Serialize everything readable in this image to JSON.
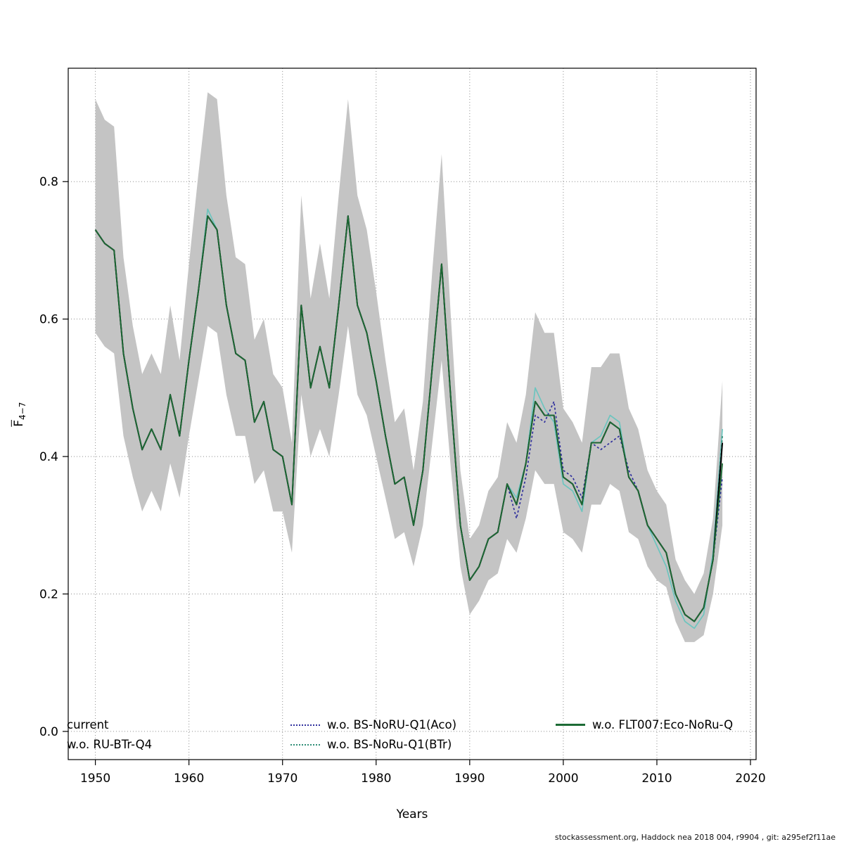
{
  "page": {
    "background": "#ffffff"
  },
  "footer": {
    "text": "stockassessment.org, Haddock  nea  2018  004, r9904 , git: a295ef2f11ae"
  },
  "chart_data": {
    "type": "line",
    "title": "",
    "xlabel": "Years",
    "ylabel": {
      "main": "F",
      "sub": "4−7"
    },
    "xlim": [
      1947.1,
      2020.6
    ],
    "ylim": [
      -0.041,
      0.965
    ],
    "xticks": [
      1950,
      1960,
      1970,
      1980,
      1990,
      2000,
      2010,
      2020
    ],
    "yticks": [
      0.0,
      0.2,
      0.4,
      0.6,
      0.8
    ],
    "grid": true,
    "grid_color": "#8f8f8f",
    "x": [
      1950,
      1951,
      1952,
      1953,
      1954,
      1955,
      1956,
      1957,
      1958,
      1959,
      1960,
      1961,
      1962,
      1963,
      1964,
      1965,
      1966,
      1967,
      1968,
      1969,
      1970,
      1971,
      1972,
      1973,
      1974,
      1975,
      1976,
      1977,
      1978,
      1979,
      1980,
      1981,
      1982,
      1983,
      1984,
      1985,
      1986,
      1987,
      1988,
      1989,
      1990,
      1991,
      1992,
      1993,
      1994,
      1995,
      1996,
      1997,
      1998,
      1999,
      2000,
      2001,
      2002,
      2003,
      2004,
      2005,
      2006,
      2007,
      2008,
      2009,
      2010,
      2011,
      2012,
      2013,
      2014,
      2015,
      2016,
      2017
    ],
    "band": {
      "color": "#c4c4c4",
      "lower": [
        0.58,
        0.56,
        0.55,
        0.43,
        0.37,
        0.32,
        0.35,
        0.32,
        0.39,
        0.34,
        0.43,
        0.51,
        0.59,
        0.58,
        0.49,
        0.43,
        0.43,
        0.36,
        0.38,
        0.32,
        0.32,
        0.26,
        0.49,
        0.4,
        0.44,
        0.4,
        0.49,
        0.59,
        0.49,
        0.46,
        0.4,
        0.34,
        0.28,
        0.29,
        0.24,
        0.3,
        0.42,
        0.54,
        0.38,
        0.24,
        0.17,
        0.19,
        0.22,
        0.23,
        0.28,
        0.26,
        0.31,
        0.38,
        0.36,
        0.36,
        0.29,
        0.28,
        0.26,
        0.33,
        0.33,
        0.36,
        0.35,
        0.29,
        0.28,
        0.24,
        0.22,
        0.21,
        0.16,
        0.13,
        0.13,
        0.14,
        0.2,
        0.3
      ],
      "upper": [
        0.92,
        0.89,
        0.88,
        0.69,
        0.59,
        0.52,
        0.55,
        0.52,
        0.62,
        0.54,
        0.68,
        0.81,
        0.93,
        0.92,
        0.78,
        0.69,
        0.68,
        0.57,
        0.6,
        0.52,
        0.5,
        0.42,
        0.78,
        0.63,
        0.71,
        0.63,
        0.78,
        0.92,
        0.78,
        0.73,
        0.64,
        0.54,
        0.45,
        0.47,
        0.38,
        0.48,
        0.67,
        0.84,
        0.6,
        0.38,
        0.28,
        0.3,
        0.35,
        0.37,
        0.45,
        0.42,
        0.49,
        0.61,
        0.58,
        0.58,
        0.47,
        0.45,
        0.42,
        0.53,
        0.53,
        0.55,
        0.55,
        0.47,
        0.44,
        0.38,
        0.35,
        0.33,
        0.25,
        0.22,
        0.2,
        0.23,
        0.31,
        0.51
      ]
    },
    "series": [
      {
        "name": "current",
        "legend_label": "current",
        "color": "#000000",
        "dash": "",
        "width": 2,
        "values": [
          0.73,
          0.71,
          0.7,
          0.55,
          0.47,
          0.41,
          0.44,
          0.41,
          0.49,
          0.43,
          0.54,
          0.64,
          0.75,
          0.73,
          0.62,
          0.55,
          0.54,
          0.45,
          0.48,
          0.41,
          0.4,
          0.33,
          0.62,
          0.5,
          0.56,
          0.5,
          0.62,
          0.75,
          0.62,
          0.58,
          0.51,
          0.43,
          0.36,
          0.37,
          0.3,
          0.38,
          0.53,
          0.68,
          0.48,
          0.3,
          0.22,
          0.24,
          0.28,
          0.29,
          0.36,
          0.33,
          0.39,
          0.48,
          0.46,
          0.46,
          0.37,
          0.36,
          0.33,
          0.42,
          0.42,
          0.45,
          0.44,
          0.37,
          0.35,
          0.3,
          0.28,
          0.26,
          0.2,
          0.17,
          0.16,
          0.18,
          0.25,
          0.42
        ]
      },
      {
        "name": "wo-RU-BTr-Q4",
        "legend_label": "w.o. RU-BTr-Q4",
        "color": "#6cc5bf",
        "dash": "",
        "width": 1.7,
        "values": [
          0.73,
          0.71,
          0.7,
          0.55,
          0.47,
          0.41,
          0.44,
          0.41,
          0.49,
          0.43,
          0.54,
          0.64,
          0.76,
          0.73,
          0.62,
          0.55,
          0.54,
          0.45,
          0.48,
          0.41,
          0.4,
          0.33,
          0.62,
          0.5,
          0.56,
          0.5,
          0.62,
          0.75,
          0.62,
          0.58,
          0.51,
          0.43,
          0.36,
          0.37,
          0.3,
          0.38,
          0.53,
          0.68,
          0.48,
          0.3,
          0.22,
          0.24,
          0.28,
          0.29,
          0.36,
          0.34,
          0.39,
          0.5,
          0.47,
          0.45,
          0.36,
          0.35,
          0.32,
          0.42,
          0.43,
          0.46,
          0.45,
          0.37,
          0.35,
          0.3,
          0.27,
          0.24,
          0.19,
          0.16,
          0.15,
          0.17,
          0.26,
          0.44
        ]
      },
      {
        "name": "wo-BS-NoRU-Q1-Aco",
        "legend_label": "w.o. BS-NoRU-Q1(Aco)",
        "color": "#2f2f9d",
        "dash": "3 3",
        "width": 1.7,
        "values": [
          0.73,
          0.71,
          0.7,
          0.55,
          0.47,
          0.41,
          0.44,
          0.41,
          0.49,
          0.43,
          0.54,
          0.64,
          0.75,
          0.73,
          0.62,
          0.55,
          0.54,
          0.45,
          0.48,
          0.41,
          0.4,
          0.33,
          0.62,
          0.5,
          0.56,
          0.5,
          0.62,
          0.75,
          0.62,
          0.58,
          0.51,
          0.43,
          0.36,
          0.37,
          0.3,
          0.38,
          0.53,
          0.68,
          0.48,
          0.3,
          0.22,
          0.24,
          0.28,
          0.29,
          0.36,
          0.31,
          0.37,
          0.46,
          0.45,
          0.48,
          0.38,
          0.37,
          0.34,
          0.42,
          0.41,
          0.42,
          0.43,
          0.38,
          0.35,
          0.3,
          0.28,
          0.26,
          0.2,
          0.17,
          0.16,
          0.18,
          0.25,
          0.37
        ]
      },
      {
        "name": "wo-BS-NoRu-Q1-BTr",
        "legend_label": "w.o. BS-NoRu-Q1(BTr)",
        "color": "#2f8e76",
        "dash": "3 3",
        "width": 1.7,
        "values": [
          0.73,
          0.71,
          0.7,
          0.55,
          0.47,
          0.41,
          0.44,
          0.41,
          0.49,
          0.43,
          0.54,
          0.64,
          0.75,
          0.73,
          0.62,
          0.55,
          0.54,
          0.45,
          0.48,
          0.41,
          0.4,
          0.33,
          0.62,
          0.5,
          0.56,
          0.5,
          0.62,
          0.75,
          0.62,
          0.58,
          0.51,
          0.43,
          0.36,
          0.37,
          0.3,
          0.38,
          0.53,
          0.68,
          0.48,
          0.3,
          0.22,
          0.24,
          0.28,
          0.29,
          0.36,
          0.33,
          0.39,
          0.48,
          0.46,
          0.46,
          0.37,
          0.36,
          0.33,
          0.42,
          0.42,
          0.45,
          0.44,
          0.37,
          0.35,
          0.3,
          0.28,
          0.26,
          0.2,
          0.17,
          0.16,
          0.18,
          0.25,
          0.43
        ]
      },
      {
        "name": "wo-FLT007-Eco-NoRu-Q",
        "legend_label": "w.o. FLT007:Eco-NoRu-Q",
        "color": "#1d6b35",
        "dash": "",
        "width": 1.8,
        "values": [
          0.73,
          0.71,
          0.7,
          0.55,
          0.47,
          0.41,
          0.44,
          0.41,
          0.49,
          0.43,
          0.54,
          0.64,
          0.75,
          0.73,
          0.62,
          0.55,
          0.54,
          0.45,
          0.48,
          0.41,
          0.4,
          0.33,
          0.62,
          0.5,
          0.56,
          0.5,
          0.62,
          0.75,
          0.62,
          0.58,
          0.51,
          0.43,
          0.36,
          0.37,
          0.3,
          0.38,
          0.53,
          0.68,
          0.48,
          0.3,
          0.22,
          0.24,
          0.28,
          0.29,
          0.36,
          0.33,
          0.39,
          0.48,
          0.46,
          0.46,
          0.37,
          0.36,
          0.33,
          0.42,
          0.42,
          0.45,
          0.44,
          0.37,
          0.35,
          0.3,
          0.28,
          0.26,
          0.2,
          0.17,
          0.16,
          0.18,
          0.25,
          0.39
        ]
      }
    ],
    "draw_order": [
      1,
      2,
      3,
      0,
      4
    ],
    "legend_position": "bottom"
  }
}
